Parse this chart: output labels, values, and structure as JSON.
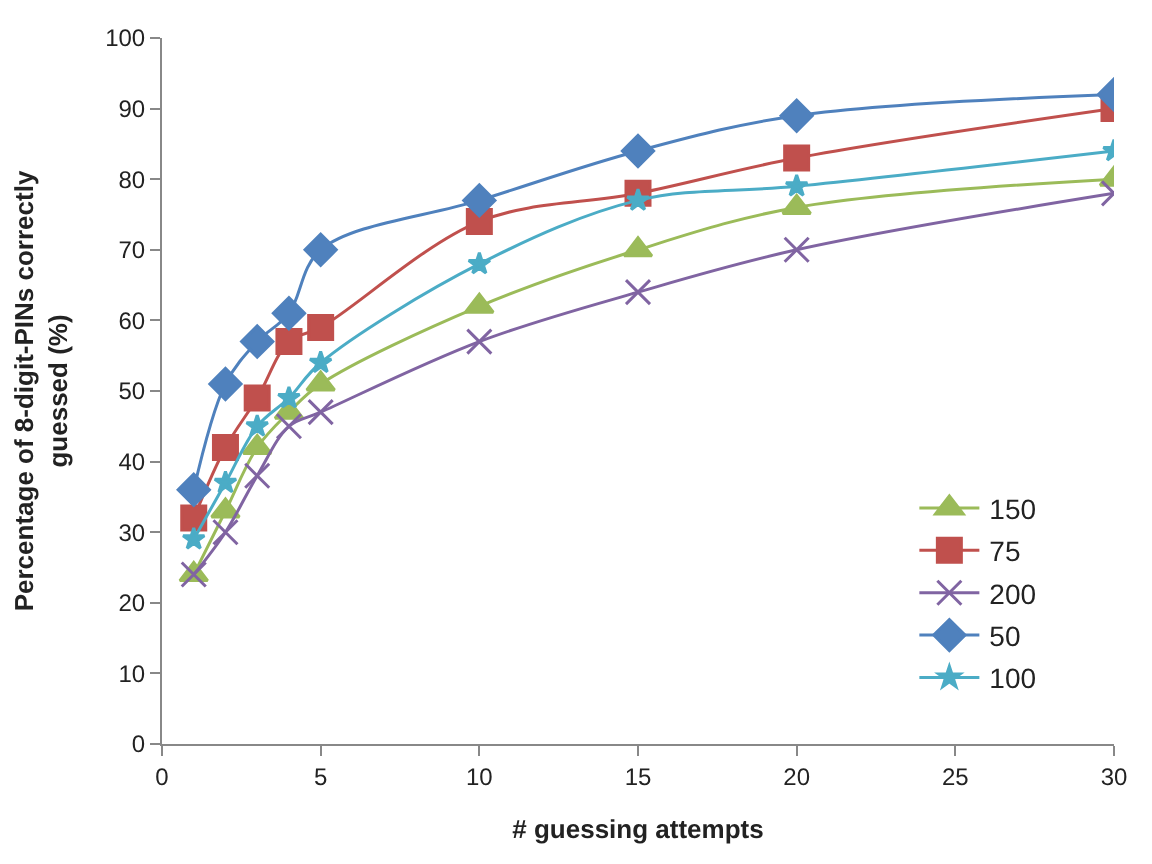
{
  "chart_data": {
    "type": "line",
    "xlabel": "# guessing attempts",
    "ylabel": "Percentage of 8-digit-PINs correctly guessed (%)",
    "x": [
      1,
      2,
      3,
      4,
      5,
      10,
      15,
      20,
      30
    ],
    "xlim": [
      0,
      30
    ],
    "xticks": [
      0,
      5,
      10,
      15,
      20,
      25,
      30
    ],
    "ylim": [
      0,
      100
    ],
    "yticks": [
      0,
      10,
      20,
      30,
      40,
      50,
      60,
      70,
      80,
      90,
      100
    ],
    "legend": "bottom right",
    "series": [
      {
        "name": "150",
        "color": "#9bbb59",
        "marker": "triangle",
        "values": [
          24,
          33,
          42,
          47,
          51,
          62,
          70,
          76,
          80
        ]
      },
      {
        "name": "75",
        "color": "#c0504d",
        "marker": "square",
        "values": [
          32,
          42,
          49,
          57,
          59,
          74,
          78,
          83,
          90
        ]
      },
      {
        "name": "200",
        "color": "#8064a2",
        "marker": "cross",
        "values": [
          24,
          30,
          38,
          45,
          47,
          57,
          64,
          70,
          78
        ]
      },
      {
        "name": "50",
        "color": "#4f81bd",
        "marker": "diamond",
        "values": [
          36,
          51,
          57,
          61,
          70,
          77,
          84,
          89,
          92
        ]
      },
      {
        "name": "100",
        "color": "#4bacc6",
        "marker": "star",
        "values": [
          29,
          37,
          45,
          49,
          54,
          68,
          77,
          79,
          84
        ]
      }
    ]
  }
}
